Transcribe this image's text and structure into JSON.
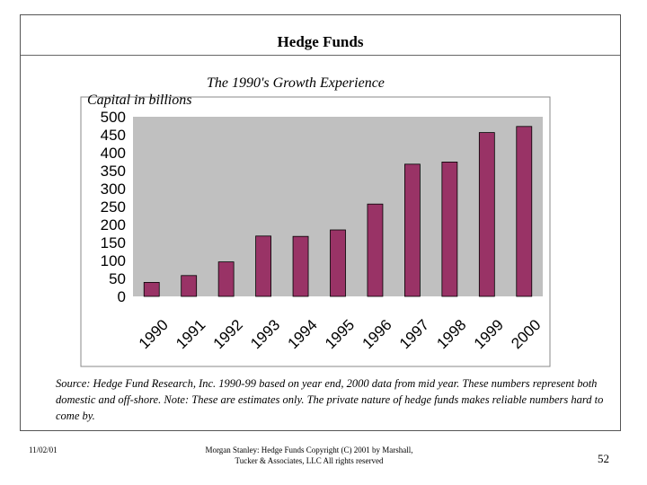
{
  "slide": {
    "title": "Hedge Funds",
    "source": "Source:  Hedge Fund Research, Inc. 1990-99 based on year end, 2000 data from mid year.  These numbers represent both domestic and off-shore.  Note:  These are estimates only.  The private nature of hedge funds makes reliable numbers hard to come by.",
    "footer_date": "11/02/01",
    "footer_copyright": "Morgan Stanley: Hedge Funds    Copyright (C) 2001 by Marshall, Tucker & Associates, LLC  All rights reserved",
    "page_number": "52"
  },
  "chart_data": {
    "type": "bar",
    "title": "The 1990's Growth Experience",
    "ylabel": "Capital in billions",
    "xlabel": "",
    "categories": [
      "1990",
      "1991",
      "1992",
      "1993",
      "1994",
      "1995",
      "1996",
      "1997",
      "1998",
      "1999",
      "2000"
    ],
    "values": [
      39,
      58,
      96,
      168,
      167,
      185,
      257,
      368,
      374,
      456,
      473
    ],
    "ylim": [
      0,
      500
    ],
    "yticks": [
      0,
      50,
      100,
      150,
      200,
      250,
      300,
      350,
      400,
      450,
      500
    ],
    "grid": false,
    "plot_background": "#c0c0c0",
    "bar_color": "#993366",
    "legend": "none"
  }
}
